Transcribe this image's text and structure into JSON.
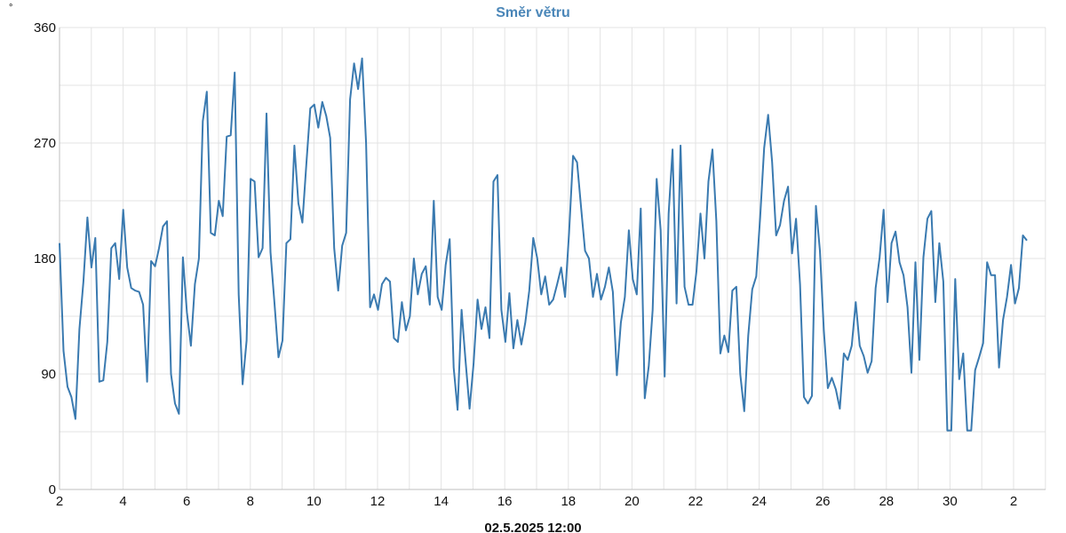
{
  "chart_data": {
    "type": "line",
    "title": "Směr větru",
    "y_unit": "°",
    "xlabel": "02.5.2025 12:00",
    "ylim": [
      0,
      360
    ],
    "y_ticks": [
      0,
      90,
      180,
      270,
      360
    ],
    "x_ticks": [
      "2",
      "4",
      "6",
      "8",
      "10",
      "12",
      "14",
      "16",
      "18",
      "20",
      "22",
      "24",
      "26",
      "28",
      "30",
      "2"
    ],
    "grid": true,
    "colors": {
      "line": "#3a7ab0",
      "title": "#4a86b8",
      "grid": "#e3e3e3"
    },
    "series": [
      {
        "values": [
          192,
          108,
          80,
          72,
          55,
          125,
          162,
          212,
          173,
          196,
          84,
          85,
          115,
          188,
          192,
          164,
          218,
          173,
          157,
          155,
          154,
          144,
          84,
          178,
          174,
          188,
          205,
          209,
          90,
          67,
          59,
          181,
          138,
          112,
          160,
          180,
          287,
          310,
          200,
          198,
          225,
          213,
          275,
          276,
          325,
          152,
          82,
          116,
          242,
          240,
          181,
          188,
          293,
          185,
          145,
          103,
          116,
          192,
          195,
          268,
          223,
          208,
          254,
          297,
          300,
          282,
          302,
          291,
          274,
          188,
          155,
          190,
          200,
          304,
          332,
          312,
          336,
          270,
          142,
          152,
          140,
          160,
          165,
          162,
          118,
          115,
          146,
          124,
          135,
          180,
          152,
          168,
          174,
          144,
          225,
          150,
          140,
          175,
          195,
          95,
          62,
          140,
          100,
          63,
          98,
          148,
          125,
          142,
          118,
          240,
          245,
          140,
          115,
          153,
          110,
          132,
          113,
          130,
          155,
          196,
          180,
          152,
          166,
          144,
          148,
          160,
          173,
          150,
          200,
          260,
          255,
          220,
          186,
          180,
          150,
          168,
          148,
          158,
          173,
          154,
          89,
          130,
          150,
          202,
          164,
          152,
          219,
          71,
          96,
          140,
          242,
          202,
          88,
          215,
          265,
          145,
          268,
          158,
          144,
          144,
          170,
          215,
          180,
          240,
          265,
          209,
          106,
          120,
          107,
          155,
          158,
          90,
          61,
          120,
          156,
          166,
          212,
          266,
          292,
          255,
          198,
          206,
          225,
          236,
          184,
          211,
          160,
          72,
          67,
          73,
          221,
          186,
          124,
          79,
          87,
          78,
          63,
          106,
          101,
          112,
          146,
          112,
          104,
          91,
          100,
          157,
          181,
          218,
          146,
          192,
          201,
          177,
          167,
          142,
          91,
          177,
          101,
          181,
          211,
          217,
          146,
          192,
          162,
          46,
          46,
          164,
          86,
          106,
          46,
          46,
          93,
          103,
          114,
          177,
          167,
          167,
          95,
          132,
          150,
          175,
          145,
          157,
          198,
          194
        ]
      }
    ]
  }
}
